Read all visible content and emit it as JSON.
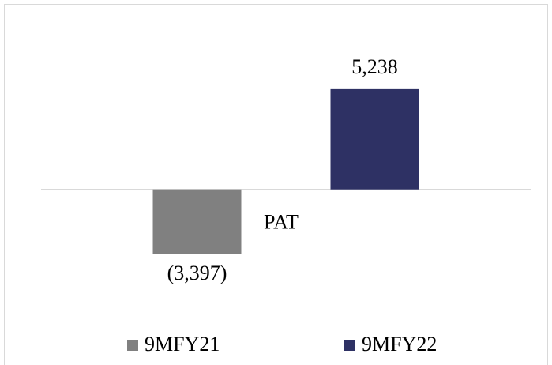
{
  "chart_data": {
    "type": "bar",
    "categories": [
      "PAT"
    ],
    "series": [
      {
        "name": "9MFY21",
        "color": "#808080",
        "values": [
          -3397
        ],
        "value_labels": [
          "(3,397)"
        ]
      },
      {
        "name": "9MFY22",
        "color": "#2e3164",
        "values": [
          5238
        ],
        "value_labels": [
          "5,238"
        ]
      }
    ],
    "ylim": [
      -6000,
      8000
    ],
    "legend": "bottom"
  }
}
